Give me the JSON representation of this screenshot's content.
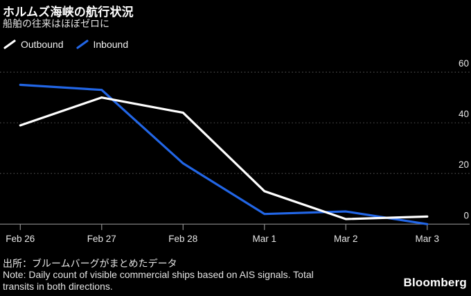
{
  "header": {
    "title": "ホルムズ海峡の航行状況",
    "subtitle": "船舶の往来はほぼゼロに"
  },
  "legend": [
    {
      "label": "Outbound",
      "color": "#ffffff"
    },
    {
      "label": "Inbound",
      "color": "#2266e6"
    }
  ],
  "chart_data": {
    "type": "line",
    "categories": [
      "Feb 26",
      "Feb 27",
      "Feb 28",
      "Mar 1",
      "Mar 2",
      "Mar 3"
    ],
    "series": [
      {
        "name": "Outbound",
        "color": "#ffffff",
        "values": [
          39,
          50,
          44,
          13,
          2,
          3
        ]
      },
      {
        "name": "Inbound",
        "color": "#2266e6",
        "values": [
          55,
          53,
          24,
          4,
          5,
          0
        ]
      }
    ],
    "y_ticks": [
      60,
      40,
      20,
      0
    ],
    "ylim": [
      0,
      62
    ],
    "xlabel": "",
    "ylabel": "",
    "grid": "horizontal dotted",
    "y_axis_side": "right",
    "legend_position": "top-left",
    "background": "#000000"
  },
  "footer": {
    "source": "出所：ブルームバーグがまとめたデータ",
    "note_line1": "Note: Daily count of visible commercial ships based on AIS signals. Total",
    "note_line2": "transits in both directions.",
    "logo": "Bloomberg"
  },
  "colors": {
    "background": "#000000",
    "grid": "#4f4f4f",
    "axis": "#8c8c8c",
    "axis_text": "#e8e8e8",
    "title_text": "#ffffff"
  }
}
